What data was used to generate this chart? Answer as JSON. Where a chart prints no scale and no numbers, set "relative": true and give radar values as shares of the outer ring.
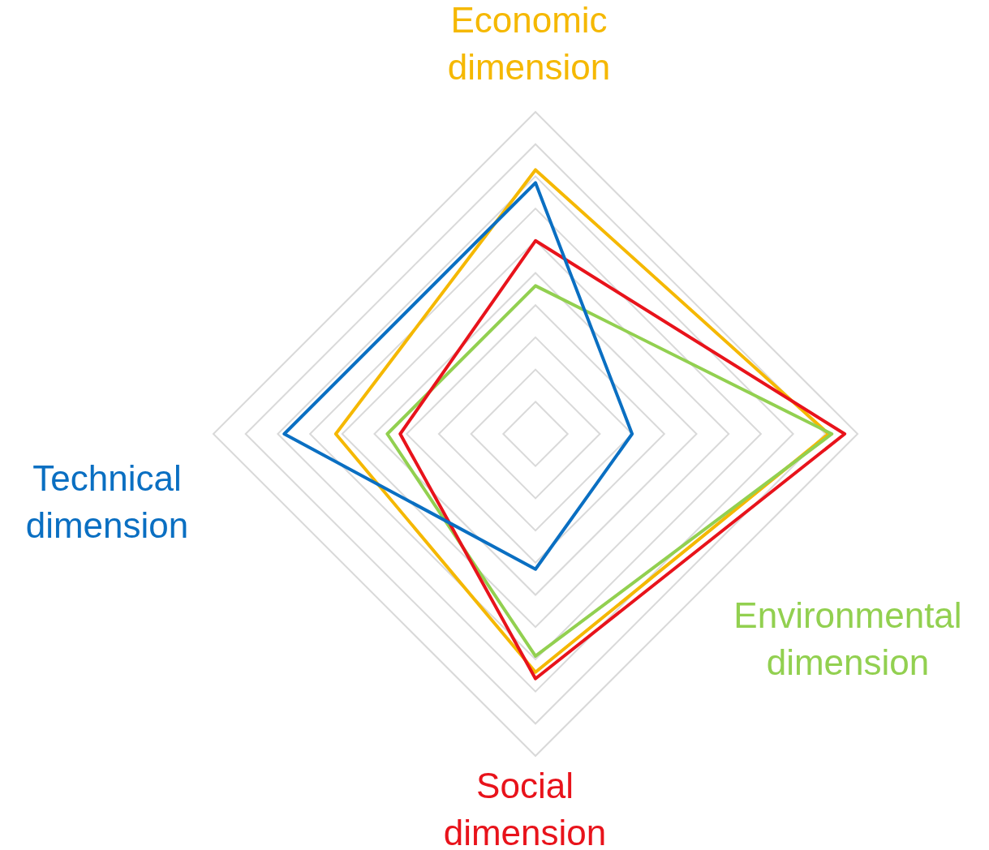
{
  "chart_data": {
    "type": "radar",
    "relative": true,
    "grid": true,
    "categories": [
      "Economic dimension",
      "Environmental dimension",
      "Social dimension",
      "Technical dimension"
    ],
    "series": [
      {
        "color": "#f5b800",
        "values": [
          0.82,
          0.91,
          0.74,
          0.62
        ]
      },
      {
        "color": "#92d050",
        "values": [
          0.46,
          0.92,
          0.69,
          0.46
        ]
      },
      {
        "color": "#e8131b",
        "values": [
          0.6,
          0.96,
          0.76,
          0.42
        ]
      },
      {
        "color": "#0a6fc2",
        "values": [
          0.78,
          0.3,
          0.42,
          0.78
        ]
      }
    ]
  }
}
